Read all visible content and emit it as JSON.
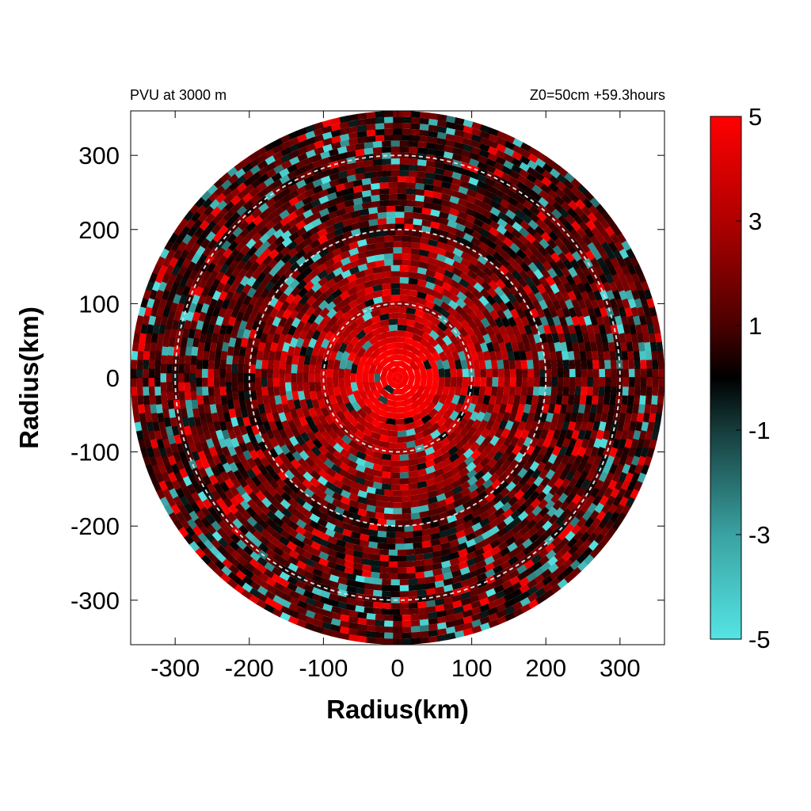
{
  "chart_data": {
    "type": "heatmap",
    "title_left": "PVU at  3000 m",
    "title_right": "Z0=50cm  +59.3hours",
    "xlabel": "Radius(km)",
    "ylabel": "Radius(km)",
    "xlim": [
      -360,
      360
    ],
    "ylim": [
      -360,
      360
    ],
    "x_ticks": [
      -300,
      -200,
      -100,
      0,
      100,
      200,
      300
    ],
    "y_ticks": [
      300,
      200,
      100,
      0,
      -100,
      -200,
      -300
    ],
    "data_radius_km": 360,
    "range_rings_km": [
      100,
      200,
      300
    ],
    "colorbar": {
      "min": -5,
      "max": 5,
      "ticks": [
        5,
        3,
        1,
        -1,
        -3,
        -5
      ],
      "stops": [
        {
          "value": -5,
          "color": "#55e4e4"
        },
        {
          "value": -3,
          "color": "#3aa2a2"
        },
        {
          "value": -1,
          "color": "#163c3c"
        },
        {
          "value": 0,
          "color": "#000000"
        },
        {
          "value": 1,
          "color": "#4a0000"
        },
        {
          "value": 3,
          "color": "#b00000"
        },
        {
          "value": 5,
          "color": "#ff0000"
        }
      ]
    },
    "field_description_values": {
      "eye_core_pvu": 5,
      "core_radius_km": 55,
      "background_pvu": 1.2,
      "inner_band_pvu": 3.5
    }
  }
}
